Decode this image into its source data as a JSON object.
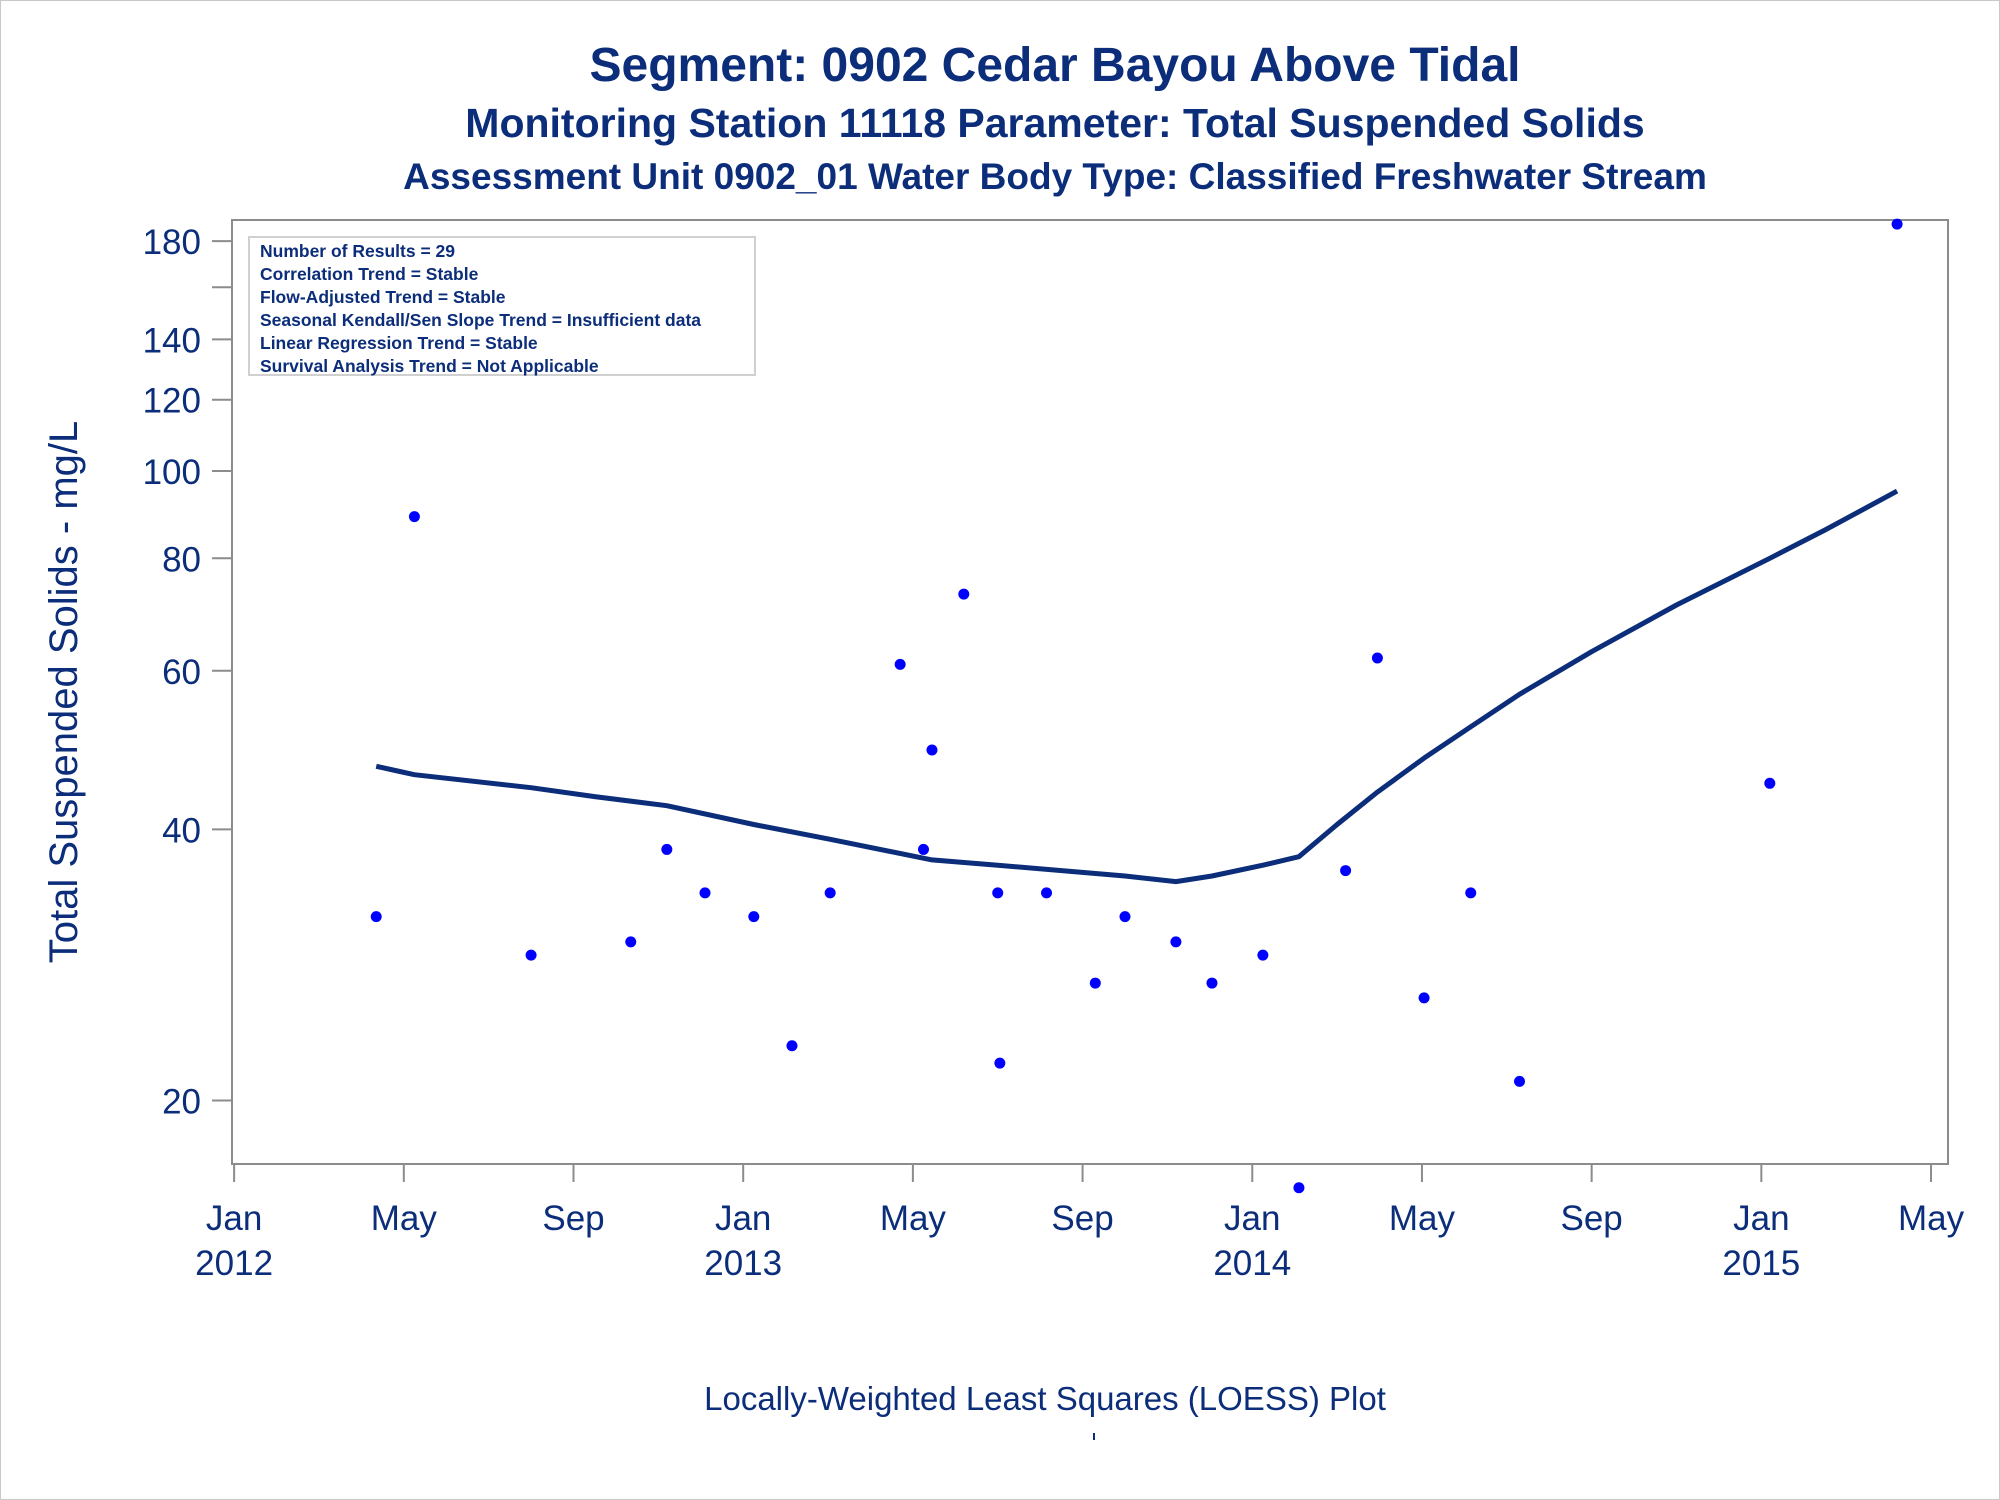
{
  "chart_data": {
    "type": "scatter",
    "title": "Segment: 0902  Cedar Bayou Above Tidal",
    "subtitle": "Monitoring Station 11118 Parameter: Total Suspended Solids",
    "subtitle2": "Assessment Unit 0902_01   Water Body Type: Classified Freshwater Stream",
    "xlabel": "",
    "ylabel": "Total Suspended Solids - mg/L",
    "footnote": "Locally-Weighted Least Squares (LOESS) Plot",
    "y_scale": "log",
    "ylim": [
      17,
      190
    ],
    "xlim": [
      -0.05,
      40.4
    ],
    "x_unit": "months since Jan 2012",
    "x_ticks": [
      {
        "value": 0,
        "label": "Jan",
        "year": "2012"
      },
      {
        "value": 4,
        "label": "May",
        "year": ""
      },
      {
        "value": 8,
        "label": "Sep",
        "year": ""
      },
      {
        "value": 12,
        "label": "Jan",
        "year": "2013"
      },
      {
        "value": 16,
        "label": "May",
        "year": ""
      },
      {
        "value": 20,
        "label": "Sep",
        "year": ""
      },
      {
        "value": 24,
        "label": "Jan",
        "year": "2014"
      },
      {
        "value": 28,
        "label": "May",
        "year": ""
      },
      {
        "value": 32,
        "label": "Sep",
        "year": ""
      },
      {
        "value": 36,
        "label": "Jan",
        "year": "2015"
      },
      {
        "value": 40,
        "label": "May",
        "year": ""
      }
    ],
    "y_ticks": [
      {
        "value": 20,
        "label": "20"
      },
      {
        "value": 40,
        "label": "40"
      },
      {
        "value": 60,
        "label": "60"
      },
      {
        "value": 80,
        "label": "80"
      },
      {
        "value": 100,
        "label": "100"
      },
      {
        "value": 120,
        "label": "120"
      },
      {
        "value": 140,
        "label": "140"
      },
      {
        "value": 160,
        "label": ""
      },
      {
        "value": 180,
        "label": "180"
      }
    ],
    "series": [
      {
        "name": "Observed",
        "style": "markers",
        "color": "#0000ff",
        "points": [
          {
            "x": 3.35,
            "y": 32
          },
          {
            "x": 4.25,
            "y": 89
          },
          {
            "x": 7.0,
            "y": 29
          },
          {
            "x": 9.35,
            "y": 30
          },
          {
            "x": 10.2,
            "y": 38
          },
          {
            "x": 11.1,
            "y": 34
          },
          {
            "x": 12.25,
            "y": 32
          },
          {
            "x": 13.15,
            "y": 23
          },
          {
            "x": 14.05,
            "y": 34
          },
          {
            "x": 15.7,
            "y": 61
          },
          {
            "x": 16.25,
            "y": 38
          },
          {
            "x": 16.45,
            "y": 49
          },
          {
            "x": 17.2,
            "y": 73
          },
          {
            "x": 18.0,
            "y": 34
          },
          {
            "x": 18.05,
            "y": 22
          },
          {
            "x": 19.15,
            "y": 34
          },
          {
            "x": 20.3,
            "y": 27
          },
          {
            "x": 21.0,
            "y": 32
          },
          {
            "x": 22.2,
            "y": 30
          },
          {
            "x": 23.05,
            "y": 27
          },
          {
            "x": 24.25,
            "y": 29
          },
          {
            "x": 25.1,
            "y": 16
          },
          {
            "x": 26.2,
            "y": 36
          },
          {
            "x": 26.95,
            "y": 62
          },
          {
            "x": 28.05,
            "y": 26
          },
          {
            "x": 29.15,
            "y": 34
          },
          {
            "x": 30.3,
            "y": 21
          },
          {
            "x": 36.2,
            "y": 45
          },
          {
            "x": 39.2,
            "y": 188
          }
        ]
      },
      {
        "name": "LOESS",
        "style": "line",
        "color": "#0b2d7a",
        "points": [
          {
            "x": 3.35,
            "y": 47
          },
          {
            "x": 3.8,
            "y": 46.5
          },
          {
            "x": 4.25,
            "y": 46
          },
          {
            "x": 7.0,
            "y": 44.5
          },
          {
            "x": 8.5,
            "y": 43.5
          },
          {
            "x": 10.2,
            "y": 42.5
          },
          {
            "x": 12.25,
            "y": 40.5
          },
          {
            "x": 14.05,
            "y": 39
          },
          {
            "x": 16.45,
            "y": 37
          },
          {
            "x": 18.0,
            "y": 36.5
          },
          {
            "x": 21.0,
            "y": 35.5
          },
          {
            "x": 22.2,
            "y": 35
          },
          {
            "x": 23.05,
            "y": 35.5
          },
          {
            "x": 24.25,
            "y": 36.5
          },
          {
            "x": 25.1,
            "y": 37.3
          },
          {
            "x": 26.0,
            "y": 40.5
          },
          {
            "x": 26.95,
            "y": 44
          },
          {
            "x": 28.05,
            "y": 48
          },
          {
            "x": 29.15,
            "y": 52
          },
          {
            "x": 30.3,
            "y": 56.5
          },
          {
            "x": 32.0,
            "y": 63
          },
          {
            "x": 34.0,
            "y": 71
          },
          {
            "x": 36.2,
            "y": 80
          },
          {
            "x": 37.5,
            "y": 86
          },
          {
            "x": 39.2,
            "y": 95
          }
        ]
      }
    ],
    "annotation_lines": [
      "Number of Results = 29",
      "Correlation Trend = Stable",
      "Flow-Adjusted Trend = Stable",
      "Seasonal Kendall/Sen Slope Trend = Insufficient data",
      "Linear Regression Trend = Stable",
      "Survival Analysis Trend = Not Applicable"
    ],
    "legend": "none",
    "grid": false
  }
}
